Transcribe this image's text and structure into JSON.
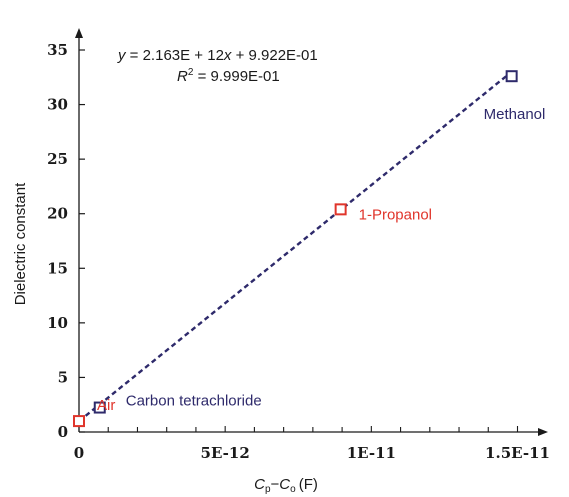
{
  "chart_data": {
    "type": "scatter",
    "xlabel": {
      "main_c": "C",
      "main_p": "p",
      "dash": "−",
      "second_c": "C",
      "second_o": "o",
      "unit": "(F)"
    },
    "ylabel": "Dielectric constant",
    "xlim": [
      0,
      1.5e-11
    ],
    "ylim": [
      0,
      35
    ],
    "x_major_ticks": [
      0,
      5e-12,
      1e-11,
      1.5e-11
    ],
    "x_tick_labels": [
      "0",
      "5E-12",
      "1E-11",
      "1.5E-11"
    ],
    "x_minor_step": 1e-12,
    "y_ticks": [
      0,
      5,
      10,
      15,
      20,
      25,
      30,
      35
    ],
    "y_tick_labels": [
      "0",
      "5",
      "10",
      "15",
      "20",
      "25",
      "30",
      "35"
    ],
    "points": [
      {
        "name": "Air",
        "x": 0.0,
        "y": 1.0,
        "marker_color": "#e0352b",
        "label_color": "#e0352b"
      },
      {
        "name": "Carbon tetrachloride",
        "x": 7.1e-13,
        "y": 2.24,
        "marker_color": "#2e2a6b",
        "label_color": "#2e2a6b"
      },
      {
        "name": "1-Propanol",
        "x": 8.95e-12,
        "y": 20.4,
        "marker_color": "#e0352b",
        "label_color": "#e0352b"
      },
      {
        "name": "Methanol",
        "x": 1.48e-11,
        "y": 32.6,
        "marker_color": "#2e2a6b",
        "label_color": "#2e2a6b"
      }
    ],
    "fit": {
      "slope": 2163000000000.0,
      "intercept": 0.9922,
      "x_range": [
        0,
        1.48e-11
      ],
      "color": "#2e2a6b",
      "style": "dashed"
    },
    "equation": {
      "y": "y",
      "eq": " = 2.163E + 12",
      "x": "x",
      "rest": " + 9.922E-01"
    },
    "r_squared": {
      "r": "R",
      "sup": "2",
      "rest": " = 9.999E-01"
    }
  }
}
